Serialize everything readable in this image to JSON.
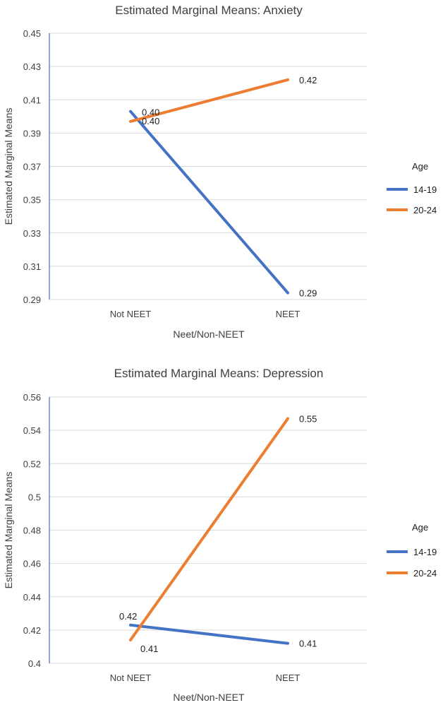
{
  "chart_data": [
    {
      "type": "line",
      "title": "Estimated Marginal Means: Anxiety",
      "xlabel": "Neet/Non-NEET",
      "ylabel": "Estimated Marginal Means",
      "categories": [
        "Not NEET",
        "NEET"
      ],
      "yticks": [
        "0.29",
        "0.31",
        "0.33",
        "0.35",
        "0.37",
        "0.39",
        "0.41",
        "0.43",
        "0.45"
      ],
      "ylim": [
        0.29,
        0.45
      ],
      "legend_title": "Age",
      "legend_position": "right",
      "series": [
        {
          "name": "14-19",
          "color": "#4472c4",
          "values": [
            0.403,
            0.294
          ],
          "labels": [
            "0.40",
            "0.29"
          ]
        },
        {
          "name": "20-24",
          "color": "#ed7d31",
          "values": [
            0.397,
            0.422
          ],
          "labels": [
            "0.40",
            "0.42"
          ]
        }
      ]
    },
    {
      "type": "line",
      "title": "Estimated Marginal Means: Depression",
      "xlabel": "Neet/Non-NEET",
      "ylabel": "Estimated Marginal Means",
      "categories": [
        "Not NEET",
        "NEET"
      ],
      "yticks": [
        "0.4",
        "0.42",
        "0.44",
        "0.46",
        "0.48",
        "0.5",
        "0.52",
        "0.54",
        "0.56"
      ],
      "ylim": [
        0.4,
        0.56
      ],
      "legend_title": "Age",
      "legend_position": "right",
      "series": [
        {
          "name": "14-19",
          "color": "#4472c4",
          "values": [
            0.423,
            0.412
          ],
          "labels": [
            "0.42",
            "0.41"
          ]
        },
        {
          "name": "20-24",
          "color": "#ed7d31",
          "values": [
            0.414,
            0.547
          ],
          "labels": [
            "0.41",
            "0.55"
          ]
        }
      ]
    }
  ]
}
